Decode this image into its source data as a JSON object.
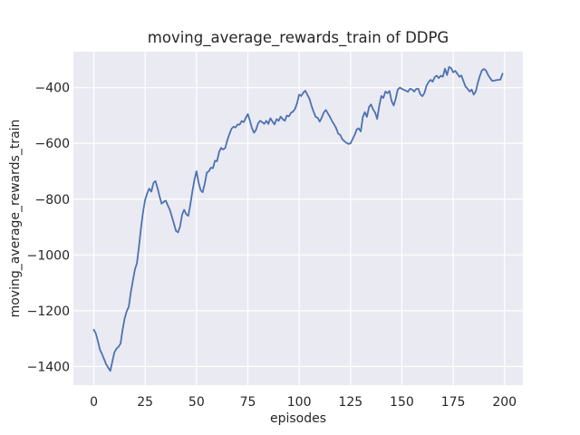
{
  "chart_data": {
    "type": "line",
    "title": "moving_average_rewards_train of DDPG",
    "xlabel": "episodes",
    "ylabel": "moving_average_rewards_train",
    "x_ticks": [
      0,
      25,
      50,
      75,
      100,
      125,
      150,
      175,
      200
    ],
    "x_tick_labels": [
      "0",
      "25",
      "50",
      "75",
      "100",
      "125",
      "150",
      "175",
      "200"
    ],
    "y_ticks": [
      -400,
      -600,
      -800,
      -1000,
      -1200,
      -1400
    ],
    "y_tick_labels": [
      "−400",
      "−600",
      "−800",
      "−1000",
      "−1200",
      "−1400"
    ],
    "xlim": [
      -9.95,
      208.95
    ],
    "ylim": [
      -1467,
      -271
    ],
    "grid": true,
    "legend_position": "none",
    "colors": {
      "line": "#4c72b0",
      "axes_background": "#eaeaf2",
      "grid": "#ffffff",
      "figure_background": "#ffffff",
      "text": "#262626"
    },
    "series": [
      {
        "name": "moving_average_rewards_train",
        "x_start": 0,
        "x_step": 1,
        "values": [
          -1268,
          -1282,
          -1310,
          -1340,
          -1356,
          -1374,
          -1392,
          -1404,
          -1416,
          -1383,
          -1350,
          -1336,
          -1330,
          -1318,
          -1268,
          -1228,
          -1202,
          -1186,
          -1135,
          -1093,
          -1052,
          -1030,
          -968,
          -900,
          -845,
          -802,
          -778,
          -762,
          -773,
          -742,
          -735,
          -760,
          -790,
          -816,
          -810,
          -805,
          -822,
          -838,
          -862,
          -888,
          -914,
          -919,
          -898,
          -855,
          -838,
          -854,
          -860,
          -820,
          -772,
          -730,
          -700,
          -740,
          -768,
          -775,
          -745,
          -705,
          -700,
          -687,
          -689,
          -662,
          -664,
          -630,
          -616,
          -622,
          -616,
          -589,
          -567,
          -548,
          -540,
          -543,
          -532,
          -533,
          -520,
          -524,
          -508,
          -495,
          -519,
          -545,
          -562,
          -551,
          -528,
          -519,
          -524,
          -530,
          -519,
          -530,
          -510,
          -522,
          -532,
          -513,
          -519,
          -504,
          -513,
          -519,
          -500,
          -503,
          -490,
          -486,
          -476,
          -455,
          -425,
          -430,
          -418,
          -411,
          -426,
          -440,
          -465,
          -486,
          -505,
          -508,
          -522,
          -507,
          -489,
          -480,
          -493,
          -505,
          -520,
          -532,
          -545,
          -565,
          -570,
          -585,
          -592,
          -598,
          -602,
          -600,
          -585,
          -570,
          -550,
          -546,
          -557,
          -505,
          -488,
          -505,
          -470,
          -460,
          -478,
          -490,
          -512,
          -465,
          -430,
          -437,
          -414,
          -420,
          -412,
          -448,
          -464,
          -440,
          -407,
          -400,
          -404,
          -408,
          -411,
          -415,
          -404,
          -407,
          -414,
          -405,
          -404,
          -424,
          -431,
          -419,
          -394,
          -380,
          -372,
          -379,
          -362,
          -357,
          -366,
          -357,
          -361,
          -332,
          -355,
          -326,
          -330,
          -345,
          -340,
          -350,
          -361,
          -356,
          -377,
          -396,
          -404,
          -414,
          -407,
          -425,
          -414,
          -382,
          -358,
          -338,
          -333,
          -339,
          -355,
          -366,
          -376,
          -375,
          -373,
          -372,
          -371,
          -350
        ]
      }
    ]
  }
}
